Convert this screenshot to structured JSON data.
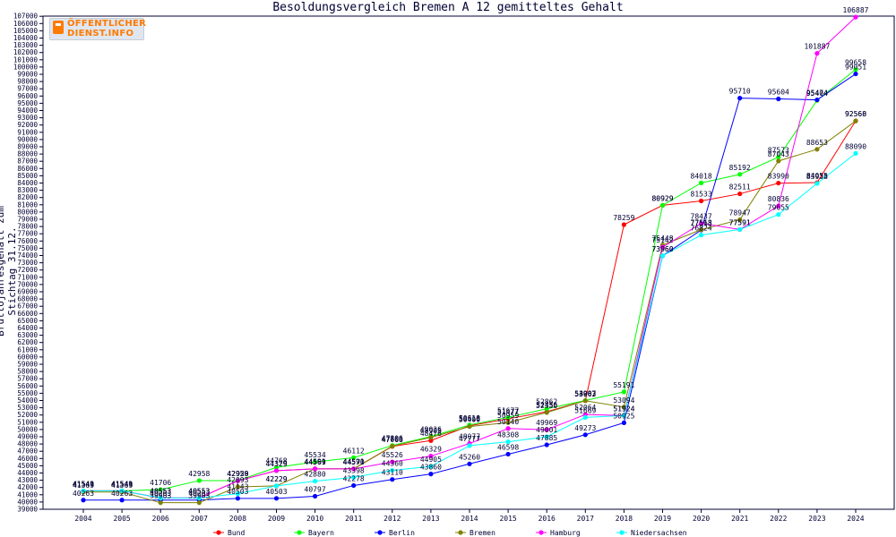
{
  "logo": {
    "line1": "ÖFFENTLICHER",
    "line2": "DIENST.INFO",
    "accent": "#ff7a00"
  },
  "chart_data": {
    "type": "line",
    "title": "Besoldungsvergleich Bremen A 12 gemitteltes Gehalt",
    "xlabel": "",
    "ylabel": "Bruttojahresgehalt zum Stichtag 31.12.",
    "ylim": [
      39000,
      107000
    ],
    "y_tick_step": 1000,
    "grid": false,
    "legend_position": "bottom",
    "categories": [
      "2004",
      "2005",
      "2006",
      "2007",
      "2008",
      "2009",
      "2010",
      "2011",
      "2012",
      "2013",
      "2014",
      "2015",
      "2016",
      "2017",
      "2018",
      "2019",
      "2020",
      "2021",
      "2022",
      "2023",
      "2024"
    ],
    "series": [
      {
        "name": "Bund",
        "color": "#ff0000",
        "values": [
          41541,
          41541,
          40553,
          40553,
          42929,
          44329,
          44569,
          44570,
          47666,
          48476,
          50518,
          51477,
          52456,
          53987,
          78259,
          80929,
          81533,
          82511,
          83990,
          84055,
          92568
        ]
      },
      {
        "name": "Bayern",
        "color": "#00ff00",
        "values": [
          41549,
          41549,
          41706,
          42958,
          42958,
          44768,
          45534,
          46112,
          47806,
          49036,
          50618,
          51677,
          52862,
          54003,
          55191,
          80929,
          84018,
          85192,
          87573,
          95404,
          99658
        ]
      },
      {
        "name": "Berlin",
        "color": "#0000ff",
        "values": [
          40263,
          40263,
          40263,
          40263,
          40503,
          40503,
          40797,
          42278,
          43110,
          43860,
          45260,
          46598,
          47885,
          49273,
          50925,
          73960,
          77513,
          95710,
          95604,
          95474,
          99051
        ]
      },
      {
        "name": "Bremen",
        "color": "#808000",
        "values": [
          41369,
          41369,
          39903,
          39903,
          42093,
          42229,
          44591,
          44591,
          47703,
          48905,
          50409,
          50959,
          52350,
          53962,
          53094,
          75448,
          77568,
          78947,
          87043,
          88653,
          92560
        ]
      },
      {
        "name": "Hamburg",
        "color": "#ff00ff",
        "values": [
          41541,
          41541,
          40553,
          40553,
          42929,
          44329,
          44569,
          44570,
          45526,
          46329,
          48077,
          50140,
          49969,
          52064,
          51924,
          75142,
          78437,
          77591,
          80836,
          101887,
          106887
        ]
      },
      {
        "name": "Niedersachsen",
        "color": "#00ffff",
        "values": [
          41541,
          41541,
          40553,
          40553,
          41143,
          42229,
          42880,
          43398,
          44360,
          44905,
          47777,
          48308,
          49001,
          51669,
          51924,
          73960,
          76824,
          77591,
          79655,
          83938,
          88090
        ]
      }
    ]
  }
}
